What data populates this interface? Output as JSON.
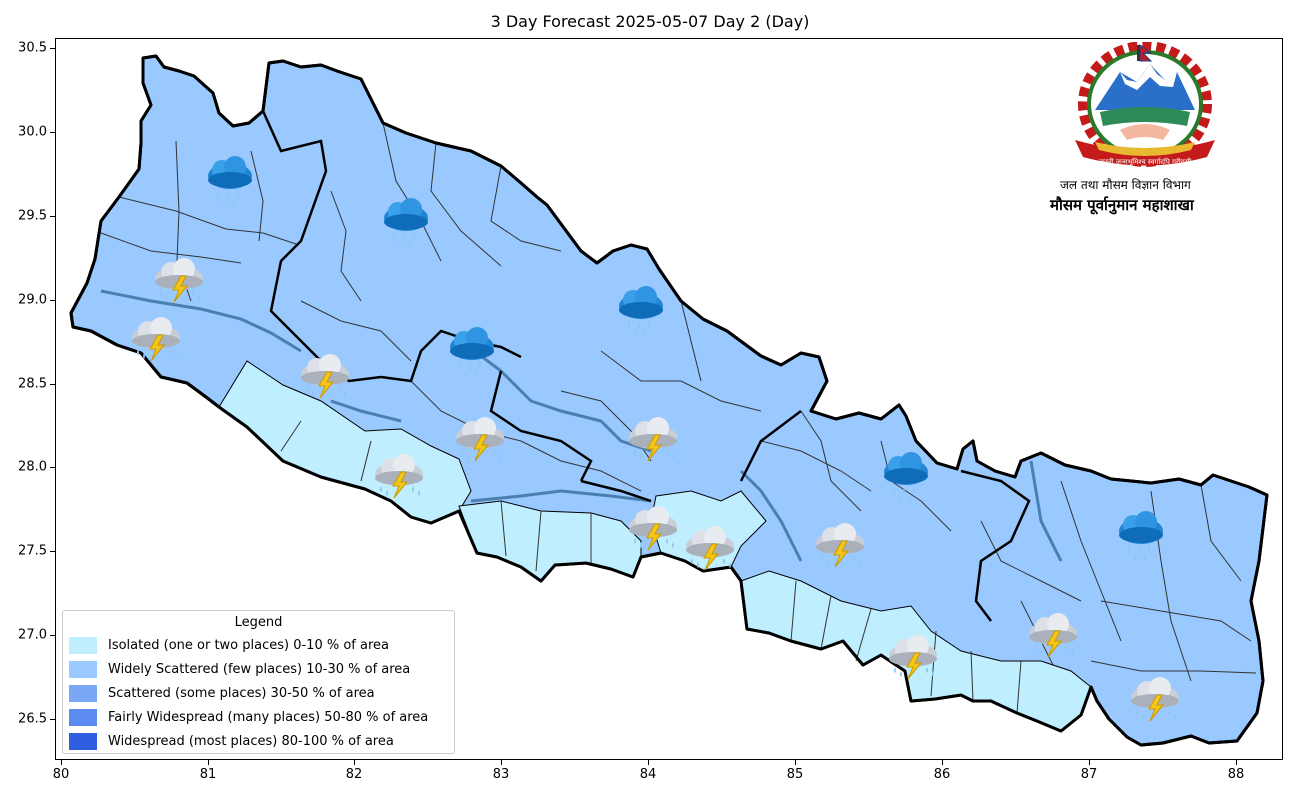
{
  "title": "3 Day Forecast 2025-05-07 Day 2 (Day)",
  "axes": {
    "x_ticks": [
      "80",
      "81",
      "82",
      "83",
      "84",
      "85",
      "86",
      "87",
      "88"
    ],
    "y_ticks": [
      "30.5",
      "30.0",
      "29.5",
      "29.0",
      "28.5",
      "28.0",
      "27.5",
      "27.0",
      "26.5"
    ]
  },
  "legend": {
    "title": "Legend",
    "items": [
      {
        "label": "Isolated (one or two places)  0-10 % of area",
        "color": "#bfeeff"
      },
      {
        "label": "Widely Scattered (few places) 10-30 % of area",
        "color": "#99c9ff"
      },
      {
        "label": "Scattered (some places) 30-50  % of area",
        "color": "#7aa8f7"
      },
      {
        "label": "Fairly Widespread (many places) 50-80 % of area",
        "color": "#5b8af0"
      },
      {
        "label": "Widespread (most places) 80-100 % of area",
        "color": "#2f5ee0"
      }
    ]
  },
  "department": {
    "line1": "जल तथा मौसम विज्ञान विभाग",
    "line2": "मौसम पूर्वानुमान महाशाखा",
    "seal_text": "जननी जन्मभूमिश्च स्वर्गादपि गरीयसी"
  },
  "weather_icons": [
    {
      "type": "rain-cloud",
      "lon": 81.15,
      "lat": 29.7
    },
    {
      "type": "rain-cloud",
      "lon": 82.35,
      "lat": 29.45
    },
    {
      "type": "rain-cloud",
      "lon": 82.8,
      "lat": 28.68
    },
    {
      "type": "rain-cloud",
      "lon": 83.95,
      "lat": 28.92
    },
    {
      "type": "rain-cloud",
      "lon": 85.75,
      "lat": 27.93
    },
    {
      "type": "rain-cloud",
      "lon": 87.35,
      "lat": 27.58
    },
    {
      "type": "thunderstorm",
      "lon": 80.8,
      "lat": 29.1
    },
    {
      "type": "thunderstorm",
      "lon": 80.65,
      "lat": 28.75
    },
    {
      "type": "thunderstorm",
      "lon": 81.8,
      "lat": 28.53
    },
    {
      "type": "thunderstorm",
      "lon": 82.3,
      "lat": 27.93
    },
    {
      "type": "thunderstorm",
      "lon": 82.85,
      "lat": 28.15
    },
    {
      "type": "thunderstorm",
      "lon": 84.03,
      "lat": 28.15
    },
    {
      "type": "thunderstorm",
      "lon": 84.03,
      "lat": 27.62
    },
    {
      "type": "thunderstorm",
      "lon": 84.42,
      "lat": 27.5
    },
    {
      "type": "thunderstorm",
      "lon": 85.3,
      "lat": 27.52
    },
    {
      "type": "thunderstorm",
      "lon": 85.8,
      "lat": 26.85
    },
    {
      "type": "thunderstorm",
      "lon": 86.75,
      "lat": 26.98
    },
    {
      "type": "thunderstorm",
      "lon": 87.45,
      "lat": 26.6
    }
  ]
}
